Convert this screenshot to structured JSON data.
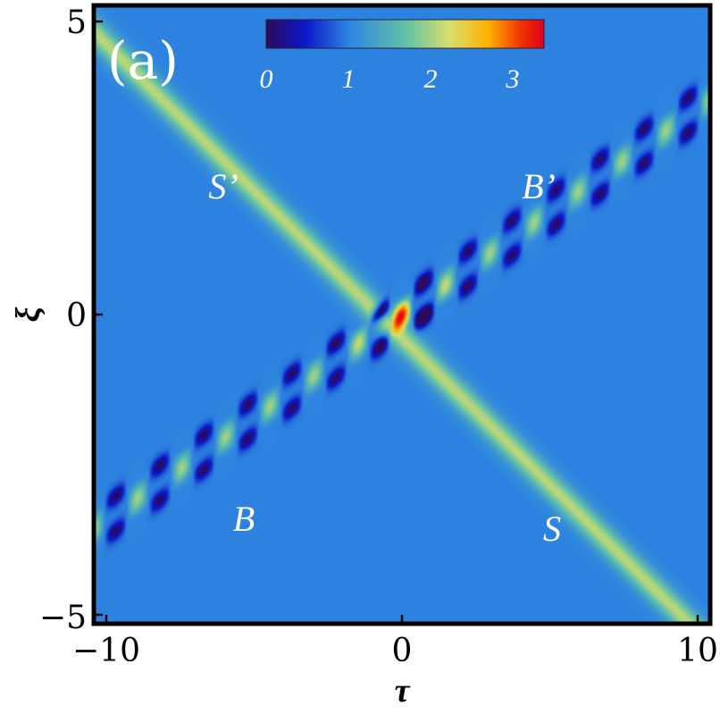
{
  "chart_data": {
    "type": "heatmap",
    "panel_label": "(a)",
    "xlabel": "τ",
    "ylabel": "ξ",
    "xlim": [
      -10.5,
      10.5
    ],
    "ylim": [
      -5.3,
      5.3
    ],
    "x_ticks": [
      {
        "value": -10,
        "label": "−10"
      },
      {
        "value": 0,
        "label": "0"
      },
      {
        "value": 10,
        "label": "10"
      }
    ],
    "y_ticks": [
      {
        "value": 5,
        "label": "5"
      },
      {
        "value": 0,
        "label": "0"
      },
      {
        "value": -5,
        "label": "−5"
      }
    ],
    "colorbar": {
      "range": [
        0,
        3.4
      ],
      "ticks": [
        {
          "value": 0,
          "label": "0"
        },
        {
          "value": 1,
          "label": "1"
        },
        {
          "value": 2,
          "label": "2"
        },
        {
          "value": 3,
          "label": "3"
        }
      ],
      "colors": [
        "#2d0a5c",
        "#0b17c8",
        "#2f86e0",
        "#62c0a8",
        "#d7e06a",
        "#ffb000",
        "#f03000",
        "#e0001e"
      ]
    },
    "background_value": 1.0,
    "features": [
      {
        "label": "S’",
        "label_position": [
          -6.2,
          2.3
        ]
      },
      {
        "label": "B’",
        "label_position": [
          4.6,
          2.3
        ]
      },
      {
        "label": "B",
        "label_position": [
          -5.6,
          -3.7
        ]
      },
      {
        "label": "S",
        "label_position": [
          5.0,
          -3.9
        ]
      }
    ],
    "soliton_S": {
      "xi_at_tau_0": -0.4,
      "slope_dxi_dtau": -0.5,
      "peak_value": 2.1
    },
    "breather_B": {
      "xi_at_tau_0": 0.0,
      "slope_dxi_dtau": 0.35,
      "period_tau": 1.5,
      "peak_value": 3.3,
      "min_value": 0.0
    }
  }
}
